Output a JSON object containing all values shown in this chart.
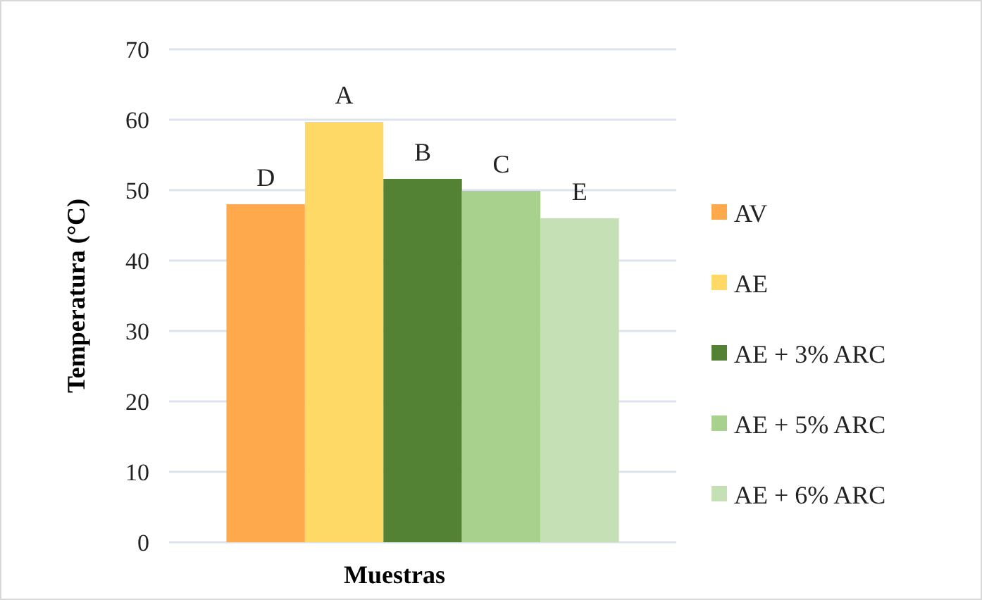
{
  "chart_data": {
    "type": "bar",
    "xlabel": "Muestras",
    "ylabel": "Temperatura (°C)",
    "categories": [
      null
    ],
    "series": [
      {
        "name": "AV",
        "color": "#ffa94d",
        "values": [
          48.0
        ],
        "value_labels": [
          "D"
        ]
      },
      {
        "name": "AE",
        "color": "#fed966",
        "values": [
          59.7
        ],
        "value_labels": [
          "A"
        ]
      },
      {
        "name": "AE + 3% ARC",
        "color": "#548235",
        "values": [
          51.6
        ],
        "value_labels": [
          "B"
        ]
      },
      {
        "name": "AE + 5% ARC",
        "color": "#a9d18e",
        "values": [
          49.9
        ],
        "value_labels": [
          "C"
        ]
      },
      {
        "name": "AE + 6% ARC",
        "color": "#c5e0b4",
        "values": [
          46.0
        ],
        "value_labels": [
          "E"
        ]
      }
    ],
    "ylim": [
      0,
      70
    ],
    "yticks": [
      0,
      10,
      20,
      30,
      40,
      50,
      60,
      70
    ],
    "grid": "y",
    "legend": "right"
  }
}
